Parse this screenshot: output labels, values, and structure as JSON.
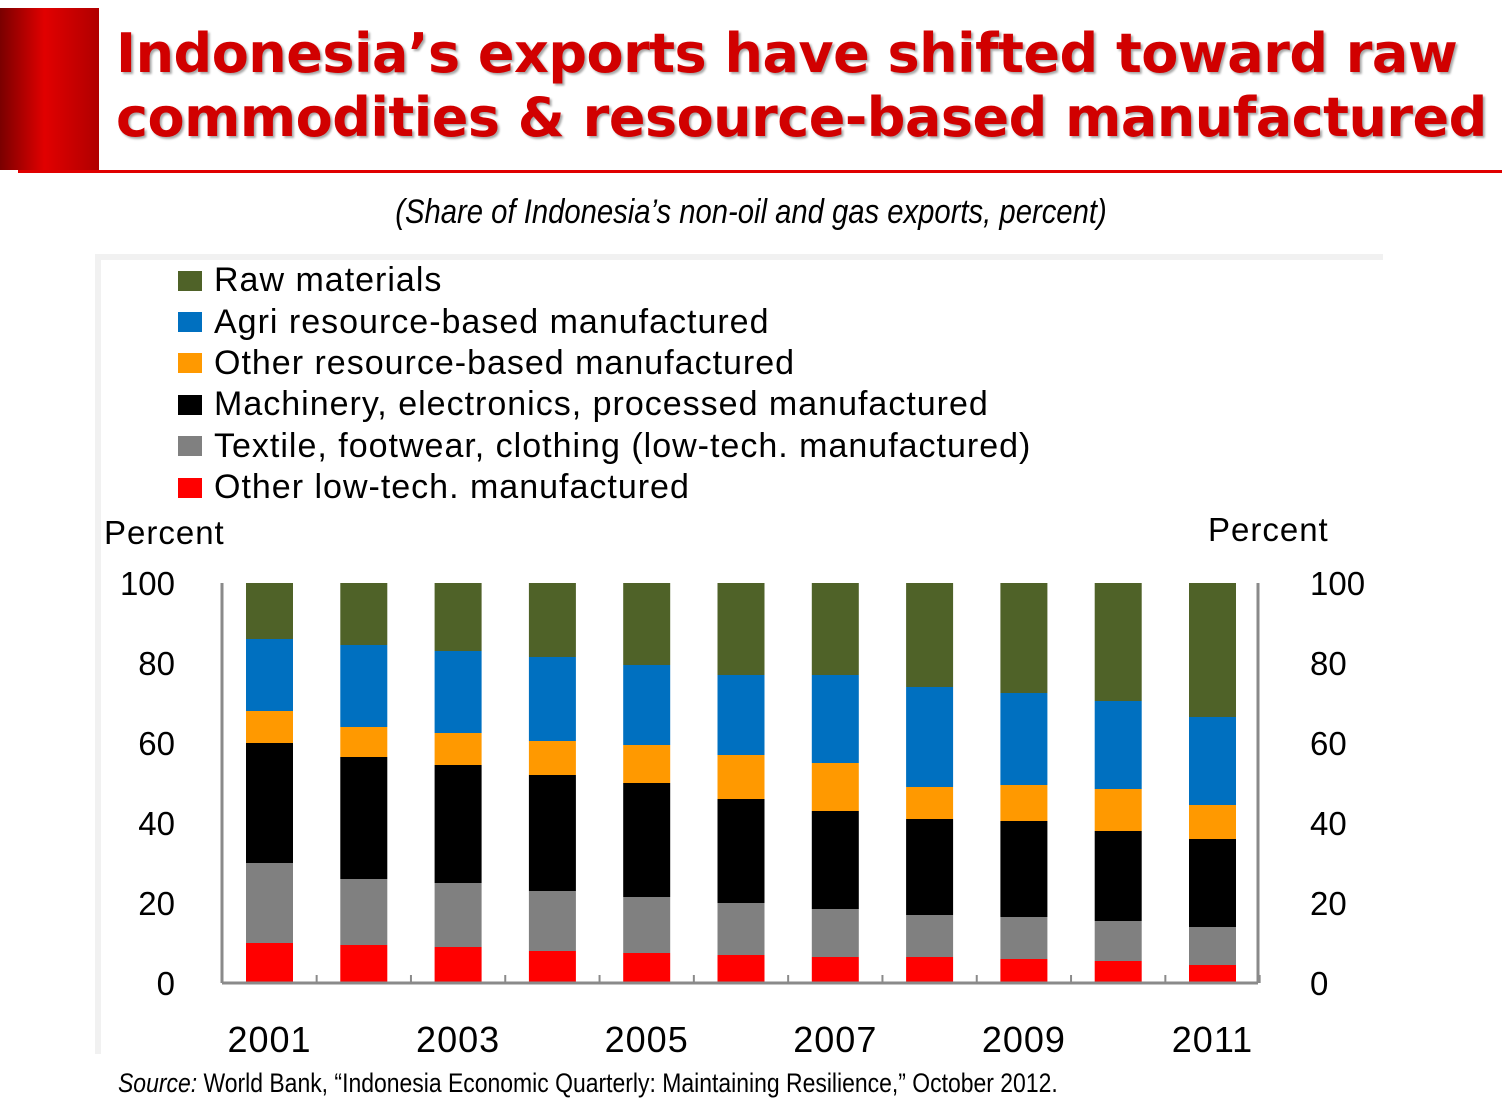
{
  "header": {
    "title_line1": "Indonesia’s exports have shifted toward raw",
    "title_line2": "commodities & resource-based manufactured",
    "subtitle": "(Share of Indonesia’s non-oil and gas exports, percent)"
  },
  "source": {
    "label": "Source:",
    "text": " World Bank, “Indonesia Economic Quarterly: Maintaining Resilience,” October 2012."
  },
  "chart_data": {
    "type": "bar",
    "stacked": true,
    "title": "",
    "ylabel_left": "Percent",
    "ylabel_right": "Percent",
    "ylim": [
      0,
      100
    ],
    "yticks": [
      0,
      20,
      40,
      60,
      80,
      100
    ],
    "categories": [
      "2001",
      "2002",
      "2003",
      "2004",
      "2005",
      "2006",
      "2007",
      "2008",
      "2009",
      "2010",
      "2011"
    ],
    "xtick_labels": [
      "2001",
      "2003",
      "2005",
      "2007",
      "2009",
      "2011"
    ],
    "legend_position": "top",
    "series": [
      {
        "name": "Raw materials",
        "color": "#4f6228",
        "values": [
          14,
          15.5,
          17,
          18.5,
          20.5,
          23,
          23,
          26,
          27.5,
          29.5,
          33.5
        ]
      },
      {
        "name": "Agri resource-based manufactured",
        "color": "#0070c0",
        "values": [
          18,
          20.5,
          20.5,
          21,
          20,
          20,
          22,
          25,
          23,
          22,
          22
        ]
      },
      {
        "name": "Other resource-based manufactured",
        "color": "#ff9900",
        "values": [
          8,
          7.5,
          8,
          8.5,
          9.5,
          11,
          12,
          8,
          9,
          10.5,
          8.5
        ]
      },
      {
        "name": "Machinery, electronics, processed manufactured",
        "color": "#000000",
        "values": [
          30,
          30.5,
          29.5,
          29,
          28.5,
          26,
          24.5,
          24,
          24,
          22.5,
          22
        ]
      },
      {
        "name": "Textile, footwear, clothing (low-tech. manufactured)",
        "color": "#808080",
        "values": [
          20,
          16.5,
          16,
          15,
          14,
          13,
          12,
          10.5,
          10.5,
          10,
          9.5
        ]
      },
      {
        "name": "Other low-tech. manufactured",
        "color": "#ff0000",
        "values": [
          10,
          9.5,
          9,
          8,
          7.5,
          7,
          6.5,
          6.5,
          6,
          5.5,
          4.5
        ]
      }
    ]
  }
}
